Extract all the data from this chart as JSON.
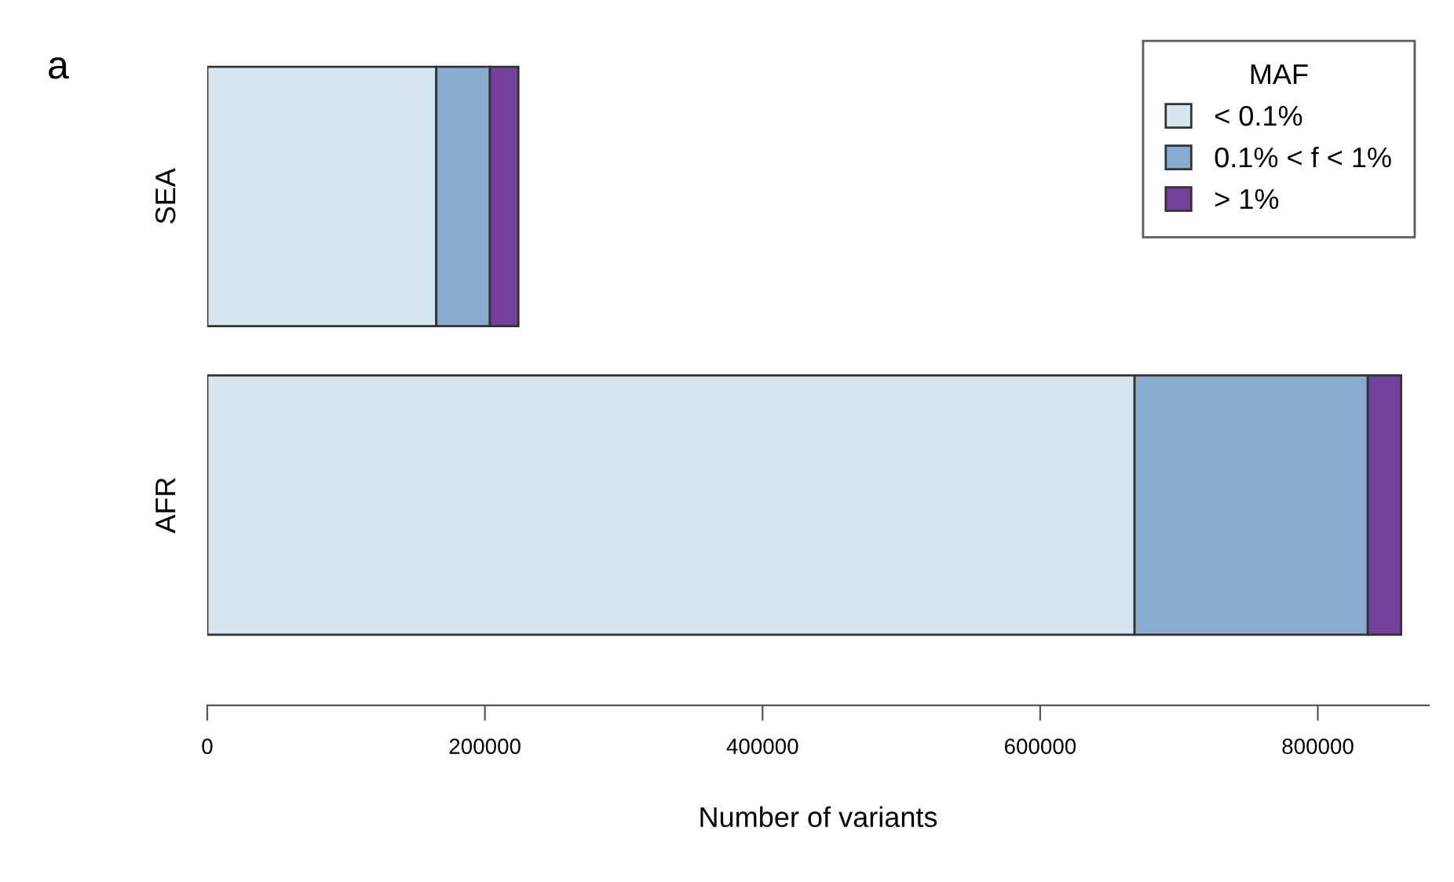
{
  "chart_data": {
    "type": "bar",
    "orientation": "horizontal",
    "stacked": true,
    "xlabel": "Number of variants",
    "legend_title": "MAF",
    "annotations": [
      "a"
    ],
    "categories": [
      "SEA",
      "AFR"
    ],
    "series": [
      {
        "name": "< 0.1%",
        "color": "#d6e6f0",
        "values": [
          165000,
          668000
        ]
      },
      {
        "name": "0.1% < f < 1%",
        "color": "#8aabd0",
        "values": [
          38600,
          168000
        ]
      },
      {
        "name": "> 1%",
        "color": "#74409a",
        "values": [
          20500,
          24000
        ]
      }
    ],
    "xlim": [
      0,
      880000
    ],
    "xticks": [
      0,
      200000,
      400000,
      600000,
      800000
    ],
    "grid": false,
    "legend": "top right"
  }
}
